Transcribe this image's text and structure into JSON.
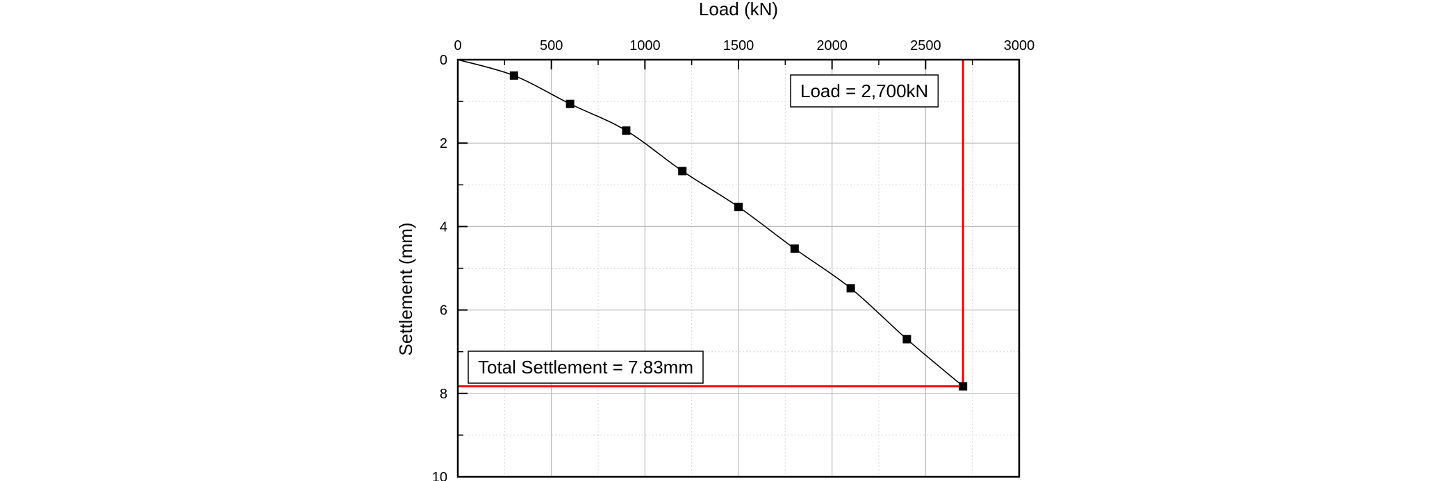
{
  "chart_data": {
    "type": "scatter",
    "title": "",
    "xlabel": "Load (kN)",
    "ylabel": "Settlement (mm)",
    "xlim": [
      0,
      3000
    ],
    "ylim": [
      0,
      10
    ],
    "y_inverted": true,
    "x_axis_position": "top",
    "xticks": [
      "0",
      "500",
      "1000",
      "1500",
      "2000",
      "2500",
      "3000"
    ],
    "yticks": [
      "0",
      "2",
      "4",
      "6",
      "8",
      "10"
    ],
    "grid": true,
    "series": [
      {
        "marker": "square",
        "line": "smooth",
        "color": "#000000",
        "x": [
          300,
          600,
          900,
          1200,
          1500,
          1800,
          2100,
          2400,
          2700
        ],
        "y": [
          0.38,
          1.06,
          1.7,
          2.67,
          3.53,
          4.53,
          5.48,
          6.7,
          7.83
        ]
      }
    ],
    "curve_start": [
      0,
      0
    ],
    "reference_lines": {
      "color": "#ff0000",
      "x": 2700,
      "y": 7.83
    },
    "annotations": [
      {
        "name": "load-annotation",
        "text": "Load = 2,700kN"
      },
      {
        "name": "settlement-annotation",
        "text": "Total Settlement = 7.83mm"
      }
    ]
  }
}
